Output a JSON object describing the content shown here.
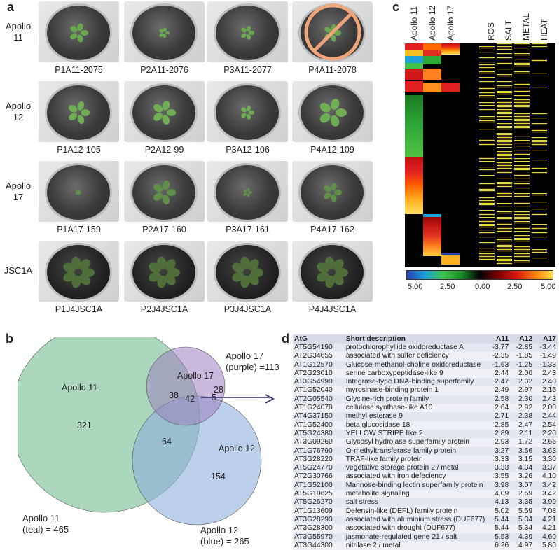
{
  "panels": {
    "a": "a",
    "b": "b",
    "c": "c",
    "d": "d"
  },
  "panel_a": {
    "rows": [
      {
        "label_line1": "Apollo",
        "label_line2": "11",
        "captions": [
          "P1A11-2075",
          "P2A11-2076",
          "P3A11-2077",
          "P4A11-2078"
        ],
        "crossed_out": [
          false,
          false,
          false,
          true
        ],
        "plant_size": [
          0.6,
          0.35,
          0.45,
          0.55
        ],
        "leaf_color": "#6aa84f"
      },
      {
        "label_line1": "Apollo",
        "label_line2": "12",
        "captions": [
          "P1A12-105",
          "P2A12-99",
          "P3A12-106",
          "P4A12-109"
        ],
        "crossed_out": [
          false,
          false,
          false,
          false
        ],
        "plant_size": [
          0.7,
          0.75,
          0.45,
          0.9
        ],
        "leaf_color": "#6fae55"
      },
      {
        "label_line1": "Apollo",
        "label_line2": "17",
        "captions": [
          "P1A17-159",
          "P2A17-160",
          "P3A17-161",
          "P4A17-162"
        ],
        "crossed_out": [
          false,
          false,
          false,
          false
        ],
        "plant_size": [
          0.15,
          0.75,
          0.3,
          0.6
        ],
        "leaf_color": "#5f8f48"
      },
      {
        "label_line1": "JSC1A",
        "label_line2": "",
        "captions": [
          "P1J4JSC1A",
          "P2J4JSC1A",
          "P3J4JSC1A",
          "P4J4JSC1A"
        ],
        "crossed_out": [
          false,
          false,
          false,
          false
        ],
        "plant_size": [
          1.0,
          1.0,
          1.0,
          1.0
        ],
        "leaf_color": "#4f6e3a"
      }
    ]
  },
  "panel_b": {
    "inner_labels": {
      "apollo11": "Apollo 11",
      "apollo17": "Apollo 17",
      "apollo12": "Apollo 12"
    },
    "counts": {
      "only11": "321",
      "only17": "28",
      "only12": "154",
      "a11_a17": "38",
      "a11_a12": "64",
      "a12_a17": "5",
      "all": "42"
    },
    "outer_labels": {
      "apollo11": [
        "Apollo 11",
        "(teal) = 465"
      ],
      "apollo17": [
        "Apollo 17",
        "(purple) =113"
      ],
      "apollo12": [
        "Apollo 12",
        "(blue) = 265"
      ]
    },
    "colors": {
      "apollo11": "#8fcaa6",
      "apollo17": "#9d7fc0",
      "apollo12": "#8fb0dd"
    }
  },
  "panel_c": {
    "column_labels": [
      "Apollo 11",
      "Apollo 12",
      "Apollo 17",
      "ROS",
      "SALT",
      "METAL",
      "HEAT"
    ],
    "colorbar_ticks": [
      "5.00",
      "2.50",
      "0.00",
      "2.50",
      "5.00"
    ]
  },
  "panel_d": {
    "headers": [
      "AtG",
      "Short description",
      "A11",
      "A12",
      "A17"
    ],
    "rows": [
      [
        "AT5G54190",
        "protochlorophyllide oxidoreductase A",
        "-3.77",
        "-2.85",
        "-3.44"
      ],
      [
        "AT2G34655",
        "associated with sulfer deficiency",
        "-2.35",
        "-1.85",
        "-1.49"
      ],
      [
        "AT1G12570",
        "Glucose-methanol-choline oxidoreductase",
        "-1.63",
        "-1.25",
        "-1.33"
      ],
      [
        "AT2G23010",
        "serine carboxypeptidase-like 9",
        "2.44",
        "2.00",
        "2.43"
      ],
      [
        "AT3G54990",
        "Integrase-type DNA-binding superfamily",
        "2.47",
        "2.32",
        "2.40"
      ],
      [
        "AT1G52040",
        "myrosinase-binding protein 1",
        "2.49",
        "2.97",
        "2.15"
      ],
      [
        "AT2G05540",
        "Glycine-rich protein family",
        "2.58",
        "2.30",
        "2.43"
      ],
      [
        "AT1G24070",
        "cellulose synthase-like A10",
        "2.64",
        "2.92",
        "2.00"
      ],
      [
        "AT4G37150",
        "methyl esterase 9",
        "2.71",
        "2.38",
        "2.44"
      ],
      [
        "AT1G52400",
        "beta glucosidase 18",
        "2.85",
        "2.47",
        "2.54"
      ],
      [
        "AT5G24380",
        "YELLOW STRIPE like 2",
        "2.89",
        "2.11",
        "2.20"
      ],
      [
        "AT3G09260",
        "Glycosyl hydrolase superfamily protein",
        "2.93",
        "1.72",
        "2.66"
      ],
      [
        "AT1G76790",
        "O-methyltransferase family protein",
        "3.27",
        "3.56",
        "3.63"
      ],
      [
        "AT3G28220",
        "TRAF-like family protein",
        "3.33",
        "3.15",
        "3.30"
      ],
      [
        "AT5G24770",
        "vegetative storage protein 2 / metal",
        "3.33",
        "4.34",
        "3.37"
      ],
      [
        "AT2G30766",
        "associated with iron defeciency",
        "3.55",
        "3.26",
        "4.10"
      ],
      [
        "AT1G52100",
        "Mannose-binding lectin superfamily protein",
        "3.98",
        "3.07",
        "3.42"
      ],
      [
        "AT5G10625",
        "metabolite signaling",
        "4.09",
        "2.59",
        "3.42"
      ],
      [
        "AT5G26270",
        "salt stress",
        "4.13",
        "3.35",
        "3.99"
      ],
      [
        "AT1G13609",
        "Defensin-like (DEFL) family protein",
        "5.02",
        "5.59",
        "7.08"
      ],
      [
        "AT3G28290",
        "associated with aluminium stress (DUF677)",
        "5.44",
        "5.34",
        "4.21"
      ],
      [
        "AT3G28300",
        "associated with drought (DUF677)",
        "5.44",
        "5.34",
        "4.21"
      ],
      [
        "AT3G55970",
        "jasmonate-regulated gene 21 / salt",
        "5.53",
        "4.39",
        "4.60"
      ],
      [
        "AT3G44300",
        "nitrilase 2 / metal",
        "6.26",
        "4.97",
        "5.80"
      ]
    ]
  }
}
